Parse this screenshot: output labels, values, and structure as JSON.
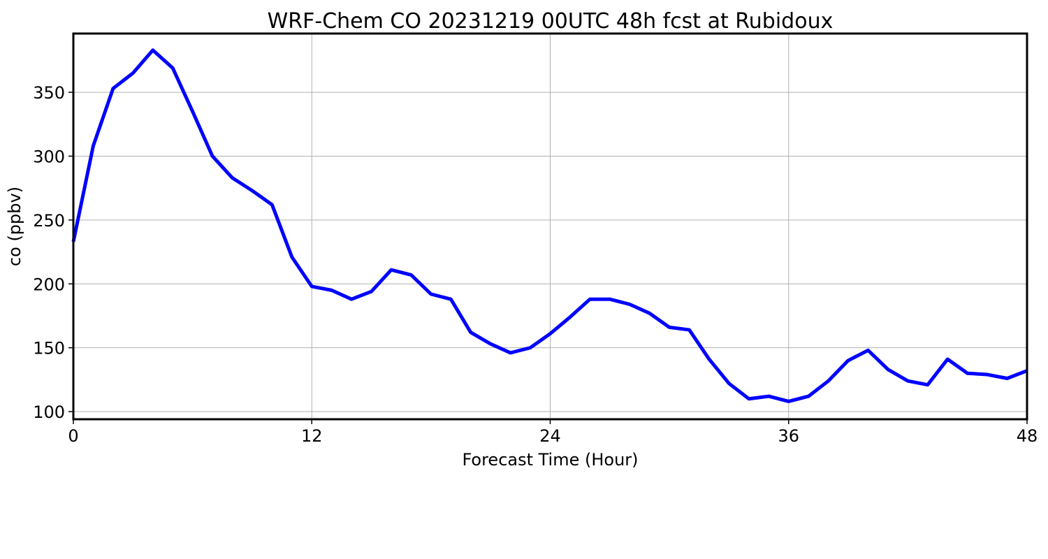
{
  "chart_data": {
    "type": "line",
    "title": "WRF-Chem CO  20231219 00UTC 48h fcst at Rubidoux",
    "xlabel": "Forecast Time (Hour)",
    "ylabel": "co  (ppbv)",
    "xlim": [
      0,
      48
    ],
    "ylim": [
      94,
      396
    ],
    "xticks": [
      0,
      12,
      24,
      36,
      48
    ],
    "yticks": [
      100,
      150,
      200,
      250,
      300,
      350
    ],
    "grid": true,
    "legend": "none",
    "line_color": "#0000ff",
    "series": [
      {
        "x": [
          0,
          1,
          2,
          3,
          4,
          5,
          6,
          7,
          8,
          9,
          10,
          11,
          12,
          13,
          14,
          15,
          16,
          17,
          18,
          19,
          20,
          21,
          22,
          23,
          24,
          25,
          26,
          27,
          28,
          29,
          30,
          31,
          32,
          33,
          34,
          35,
          36,
          37,
          38,
          39,
          40,
          41,
          42,
          43,
          44,
          45,
          46,
          47,
          48
        ],
        "values": [
          233,
          308,
          353,
          365,
          383,
          369,
          335,
          300,
          283,
          273,
          262,
          221,
          198,
          195,
          188,
          194,
          211,
          207,
          192,
          188,
          162,
          153,
          146,
          150,
          161,
          174,
          188,
          188,
          184,
          177,
          166,
          164,
          141,
          122,
          110,
          112,
          108,
          112,
          124,
          140,
          148,
          133,
          124,
          121,
          141,
          130,
          129,
          126,
          132
        ]
      }
    ]
  }
}
